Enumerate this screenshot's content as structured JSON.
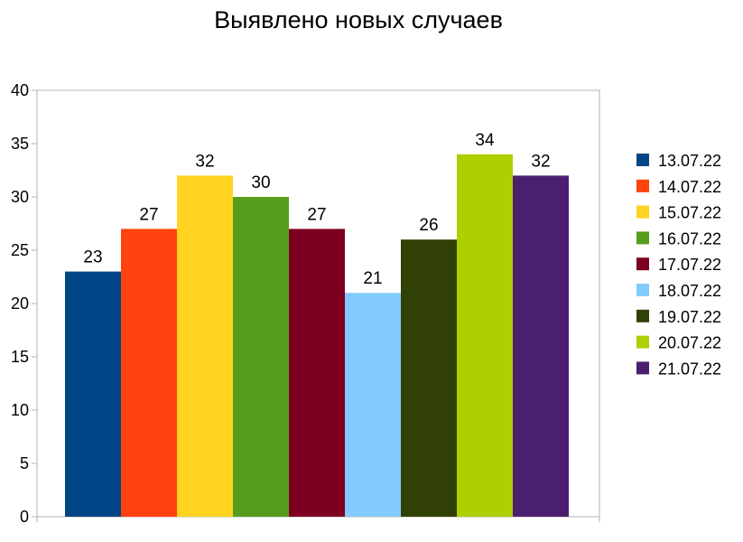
{
  "chart_data": {
    "type": "bar",
    "title": "Выявлено новых случаев",
    "xlabel": "",
    "ylabel": "",
    "ylim": [
      0,
      40
    ],
    "yticks": [
      0,
      5,
      10,
      15,
      20,
      25,
      30,
      35,
      40
    ],
    "grid": false,
    "legend": "right",
    "series": [
      {
        "name": "13.07.22",
        "value": 23,
        "color": "#004586"
      },
      {
        "name": "14.07.22",
        "value": 27,
        "color": "#ff420e"
      },
      {
        "name": "15.07.22",
        "value": 32,
        "color": "#ffd320"
      },
      {
        "name": "16.07.22",
        "value": 30,
        "color": "#579d1c"
      },
      {
        "name": "17.07.22",
        "value": 27,
        "color": "#7e0021"
      },
      {
        "name": "18.07.22",
        "value": 21,
        "color": "#83caff"
      },
      {
        "name": "19.07.22",
        "value": 26,
        "color": "#314004"
      },
      {
        "name": "20.07.22",
        "value": 34,
        "color": "#aecf00"
      },
      {
        "name": "21.07.22",
        "value": 32,
        "color": "#4b1f6f"
      }
    ]
  }
}
